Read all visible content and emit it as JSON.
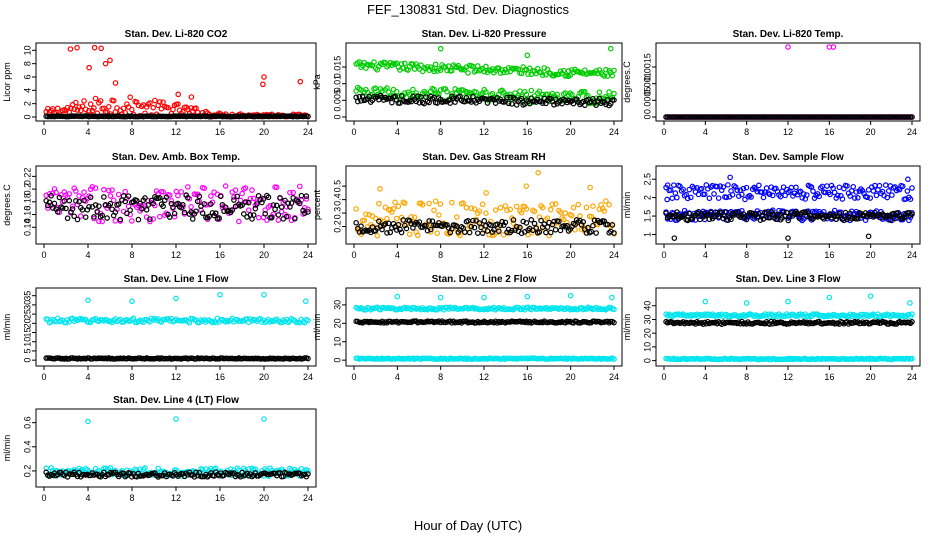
{
  "title": "FEF_130831  Std. Dev. Diagnostics",
  "xlabel": "Hour of Day (UTC)",
  "colors": {
    "red": "#ff0000",
    "green": "#00cc00",
    "magenta": "#ff00ff",
    "orange": "#ffa500",
    "blue": "#0000ff",
    "cyan": "#00e5ee",
    "black": "#000000"
  },
  "chart_data": [
    {
      "type": "scatter",
      "title": "Stan. Dev. Li-820 CO2",
      "ylabel": "Licor ppm",
      "xlim": [
        0,
        24
      ],
      "xticks": [
        "0",
        "4",
        "8",
        "12",
        "16",
        "20",
        "24"
      ],
      "ylim": [
        0,
        10.5
      ],
      "yticks": [
        0,
        2,
        4,
        6,
        8,
        10
      ],
      "series": [
        {
          "color": "red",
          "level": 1.0,
          "spread": 0.9,
          "start": 0.2,
          "end": 24,
          "outliers": [
            [
              2.4,
              10.2
            ],
            [
              3.0,
              10.4
            ],
            [
              4.6,
              10.4
            ],
            [
              5.2,
              10.3
            ],
            [
              6.0,
              8.5
            ],
            [
              5.6,
              8.0
            ],
            [
              4.1,
              7.4
            ],
            [
              20.0,
              6.0
            ],
            [
              23.3,
              5.3
            ],
            [
              19.9,
              4.9
            ],
            [
              6.5,
              5.1
            ],
            [
              13.4,
              3.0
            ],
            [
              12.2,
              3.4
            ]
          ],
          "weights": [
            [
              0,
              0.6
            ],
            [
              6,
              1.8
            ],
            [
              12,
              1.1
            ],
            [
              16,
              0.3
            ],
            [
              24,
              0.2
            ]
          ]
        },
        {
          "color": "black",
          "level": 0.1,
          "spread": 0.05,
          "start": 0.2,
          "end": 24
        }
      ]
    },
    {
      "type": "scatter",
      "title": "Stan. Dev. Li-820 Pressure",
      "ylabel": "kPa",
      "xlim": [
        0,
        24
      ],
      "xticks": [
        "0",
        "4",
        "8",
        "12",
        "16",
        "20",
        "24"
      ],
      "ylim": [
        0,
        0.021
      ],
      "yticks": [
        0,
        0.005,
        0.01,
        0.015
      ],
      "series": [
        {
          "color": "green",
          "level": 0.0155,
          "spread": 0.0012,
          "start": 0.2,
          "end": 24,
          "trend": -0.0025,
          "outliers": [
            [
              8.0,
              0.0205
            ],
            [
              16.0,
              0.0185
            ],
            [
              23.7,
              0.0205
            ],
            [
              19.8,
              0.0122
            ]
          ]
        },
        {
          "color": "green",
          "level": 0.0072,
          "spread": 0.0018,
          "start": 0.2,
          "end": 24,
          "trend": -0.0015
        },
        {
          "color": "black",
          "level": 0.0055,
          "spread": 0.0012,
          "start": 0.2,
          "end": 24,
          "trend": -0.0012
        }
      ]
    },
    {
      "type": "scatter",
      "title": "Stan. Dev. Li-820 Temp.",
      "ylabel": "degrees.C",
      "xlim": [
        0,
        24
      ],
      "xticks": [
        "0",
        "4",
        "8",
        "12",
        "16",
        "20",
        "24"
      ],
      "ylim": [
        0,
        0.0021
      ],
      "yticks": [
        0,
        0.0005,
        0.001,
        0.0015
      ],
      "series": [
        {
          "color": "magenta",
          "level": 0.0,
          "spread": 0.0,
          "start": 0.2,
          "end": 24,
          "outliers": [
            [
              12.0,
              0.0021
            ],
            [
              16.0,
              0.0021
            ],
            [
              16.4,
              0.0021
            ]
          ]
        },
        {
          "color": "black",
          "level": 0.0,
          "spread": 0.0,
          "start": 0.2,
          "end": 24
        }
      ]
    },
    {
      "type": "scatter",
      "title": "Stan. Dev. Amb. Box Temp.",
      "ylabel": "degrees.C",
      "xlim": [
        0,
        24
      ],
      "xticks": [
        "0",
        "4",
        "8",
        "12",
        "16",
        "20",
        "24"
      ],
      "ylim": [
        0.12,
        0.23
      ],
      "yticks": [
        0.14,
        0.16,
        0.18,
        0.2,
        0.22
      ],
      "series": [
        {
          "color": "magenta",
          "level": 0.177,
          "spread": 0.028,
          "start": 0.2,
          "end": 24
        },
        {
          "color": "black",
          "level": 0.172,
          "spread": 0.02,
          "start": 0.2,
          "end": 24
        }
      ]
    },
    {
      "type": "scatter",
      "title": "Stan. Dev. Gas Stream RH",
      "ylabel": "percent",
      "xlim": [
        0,
        24
      ],
      "xticks": [
        "0",
        "4",
        "8",
        "12",
        "16",
        "20",
        "24"
      ],
      "ylim": [
        0.1,
        0.62
      ],
      "yticks": [
        0.2,
        0.3,
        0.4,
        0.5
      ],
      "series": [
        {
          "color": "orange",
          "level": 0.26,
          "spread": 0.13,
          "start": 0.2,
          "end": 24,
          "outliers": [
            [
              17.0,
              0.6
            ],
            [
              2.4,
              0.48
            ],
            [
              15.9,
              0.5
            ],
            [
              21.8,
              0.49
            ],
            [
              12.2,
              0.45
            ]
          ]
        },
        {
          "color": "black",
          "level": 0.2,
          "spread": 0.05,
          "start": 0.2,
          "end": 24
        }
      ]
    },
    {
      "type": "scatter",
      "title": "Stan. Dev. Sample Flow",
      "ylabel": "ml/min",
      "xlim": [
        0,
        24
      ],
      "xticks": [
        "0",
        "4",
        "8",
        "12",
        "16",
        "20",
        "24"
      ],
      "ylim": [
        0.85,
        2.75
      ],
      "yticks": [
        1.0,
        1.5,
        2.0,
        2.5
      ],
      "series": [
        {
          "color": "blue",
          "level": 2.15,
          "spread": 0.2,
          "start": 0.2,
          "end": 24,
          "outliers": [
            [
              6.4,
              2.55
            ],
            [
              23.6,
              2.5
            ],
            [
              0.3,
              1.95
            ]
          ]
        },
        {
          "color": "blue",
          "level": 1.52,
          "spread": 0.14,
          "start": 0.2,
          "end": 24
        },
        {
          "color": "black",
          "level": 1.5,
          "spread": 0.12,
          "start": 0.2,
          "end": 24,
          "outliers": [
            [
              1.0,
              0.9
            ],
            [
              12.0,
              0.9
            ],
            [
              19.8,
              0.95
            ]
          ]
        }
      ]
    },
    {
      "type": "scatter",
      "title": "Stan. Dev. Line 1 Flow",
      "ylabel": "ml/min",
      "xlim": [
        0,
        24
      ],
      "xticks": [
        "0",
        "4",
        "8",
        "12",
        "16",
        "20",
        "24"
      ],
      "ylim": [
        -1,
        37
      ],
      "yticks": [
        0,
        5,
        10,
        15,
        20,
        25,
        30,
        35
      ],
      "series": [
        {
          "color": "cyan",
          "level": 21.5,
          "spread": 1.2,
          "start": 0.2,
          "end": 24,
          "outliers": [
            [
              4.0,
              32.5
            ],
            [
              8.0,
              32.0
            ],
            [
              12.0,
              33.5
            ],
            [
              16.0,
              35.5
            ],
            [
              20.0,
              35.5
            ],
            [
              23.8,
              32.0
            ]
          ]
        },
        {
          "color": "black",
          "level": 0.9,
          "spread": 0.3,
          "start": 0.2,
          "end": 24
        }
      ]
    },
    {
      "type": "scatter",
      "title": "Stan. Dev. Line 2 Flow",
      "ylabel": "ml/min",
      "xlim": [
        0,
        24
      ],
      "xticks": [
        "0",
        "4",
        "8",
        "12",
        "16",
        "20",
        "24"
      ],
      "ylim": [
        -1,
        37
      ],
      "yticks": [
        0,
        10,
        20,
        30
      ],
      "series": [
        {
          "color": "cyan",
          "level": 28.0,
          "spread": 0.7,
          "start": 0.2,
          "end": 24,
          "outliers": [
            [
              4.0,
              34.5
            ],
            [
              8.0,
              34.0
            ],
            [
              12.0,
              34.0
            ],
            [
              16.0,
              34.5
            ],
            [
              20.0,
              35.0
            ],
            [
              23.8,
              34.0
            ]
          ]
        },
        {
          "color": "black",
          "level": 20.7,
          "spread": 0.5,
          "start": 0.2,
          "end": 24
        },
        {
          "color": "cyan",
          "level": 0.8,
          "spread": 0.3,
          "start": 0.2,
          "end": 24
        }
      ]
    },
    {
      "type": "scatter",
      "title": "Stan. Dev. Line 3 Flow",
      "ylabel": "ml/min",
      "xlim": [
        0,
        24
      ],
      "xticks": [
        "0",
        "4",
        "8",
        "12",
        "16",
        "20",
        "24"
      ],
      "ylim": [
        -1,
        50
      ],
      "yticks": [
        0,
        10,
        20,
        30,
        40
      ],
      "series": [
        {
          "color": "cyan",
          "level": 33.0,
          "spread": 1.0,
          "start": 0.2,
          "end": 24,
          "outliers": [
            [
              4.0,
              43.0
            ],
            [
              8.0,
              42.0
            ],
            [
              12.0,
              43.0
            ],
            [
              16.0,
              46.0
            ],
            [
              20.0,
              47.0
            ],
            [
              23.8,
              42.0
            ]
          ]
        },
        {
          "color": "black",
          "level": 27.5,
          "spread": 1.0,
          "start": 0.2,
          "end": 24
        },
        {
          "color": "cyan",
          "level": 1.2,
          "spread": 0.4,
          "start": 0.2,
          "end": 24
        }
      ]
    },
    {
      "type": "scatter",
      "title": "Stan. Dev. Line 4 (LT) Flow",
      "ylabel": "ml/min",
      "xlim": [
        0,
        24
      ],
      "xticks": [
        "0",
        "4",
        "8",
        "12",
        "16",
        "20",
        "24"
      ],
      "ylim": [
        0.1,
        0.68
      ],
      "yticks": [
        0.2,
        0.4,
        0.6
      ],
      "series": [
        {
          "color": "cyan",
          "level": 0.19,
          "spread": 0.035,
          "start": 0.2,
          "end": 24,
          "outliers": [
            [
              4.0,
              0.61
            ],
            [
              12.0,
              0.63
            ],
            [
              20.0,
              0.63
            ]
          ]
        },
        {
          "color": "black",
          "level": 0.17,
          "spread": 0.02,
          "start": 0.2,
          "end": 24
        }
      ]
    }
  ]
}
